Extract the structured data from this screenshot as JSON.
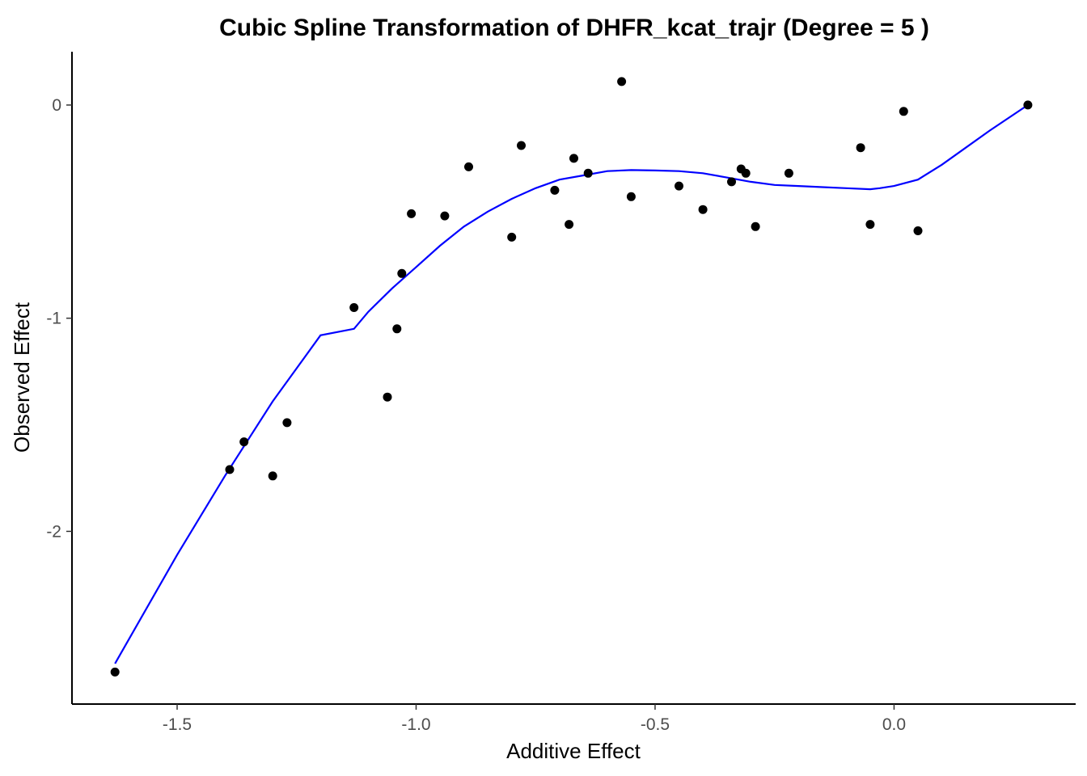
{
  "chart_data": {
    "type": "scatter",
    "title": "Cubic Spline Transformation of DHFR_kcat_trajr (Degree = 5 )",
    "xlabel": "Additive Effect",
    "ylabel": "Observed Effect",
    "xlim": [
      -1.72,
      0.38
    ],
    "ylim": [
      -2.81,
      0.25
    ],
    "x_ticks": [
      -1.5,
      -1.0,
      -0.5,
      0.0
    ],
    "x_tick_labels": [
      "-1.5",
      "-1.0",
      "-0.5",
      "0.0"
    ],
    "y_ticks": [
      0,
      -1,
      -2
    ],
    "y_tick_labels": [
      "0",
      "-1",
      "-2"
    ],
    "grid": false,
    "colors": {
      "points": "#000000",
      "line": "#0000ff",
      "axis": "#000000",
      "tick_label": "#4d4d4d"
    },
    "series": [
      {
        "type": "scatter",
        "points": [
          [
            -1.63,
            -2.66
          ],
          [
            -1.39,
            -1.71
          ],
          [
            -1.36,
            -1.58
          ],
          [
            -1.3,
            -1.74
          ],
          [
            -1.27,
            -1.49
          ],
          [
            -1.13,
            -0.95
          ],
          [
            -1.06,
            -1.37
          ],
          [
            -1.04,
            -1.05
          ],
          [
            -1.03,
            -0.79
          ],
          [
            -1.01,
            -0.51
          ],
          [
            -0.94,
            -0.52
          ],
          [
            -0.89,
            -0.29
          ],
          [
            -0.8,
            -0.62
          ],
          [
            -0.78,
            -0.19
          ],
          [
            -0.71,
            -0.4
          ],
          [
            -0.68,
            -0.56
          ],
          [
            -0.67,
            -0.25
          ],
          [
            -0.64,
            -0.32
          ],
          [
            -0.57,
            0.11
          ],
          [
            -0.55,
            -0.43
          ],
          [
            -0.45,
            -0.38
          ],
          [
            -0.4,
            -0.49
          ],
          [
            -0.34,
            -0.36
          ],
          [
            -0.32,
            -0.3
          ],
          [
            -0.31,
            -0.32
          ],
          [
            -0.29,
            -0.57
          ],
          [
            -0.22,
            -0.32
          ],
          [
            -0.07,
            -0.2
          ],
          [
            -0.05,
            -0.56
          ],
          [
            0.02,
            -0.03
          ],
          [
            0.05,
            -0.59
          ],
          [
            0.28,
            0.0
          ]
        ]
      },
      {
        "type": "line",
        "points": [
          [
            -1.63,
            -2.62
          ],
          [
            -1.5,
            -2.11
          ],
          [
            -1.4,
            -1.74
          ],
          [
            -1.3,
            -1.39
          ],
          [
            -1.2,
            -1.08
          ],
          [
            -1.13,
            -1.05
          ],
          [
            -1.1,
            -0.97
          ],
          [
            -1.05,
            -0.86
          ],
          [
            -1.0,
            -0.76
          ],
          [
            -0.95,
            -0.66
          ],
          [
            -0.9,
            -0.57
          ],
          [
            -0.85,
            -0.5
          ],
          [
            -0.8,
            -0.44
          ],
          [
            -0.75,
            -0.39
          ],
          [
            -0.7,
            -0.35
          ],
          [
            -0.65,
            -0.33
          ],
          [
            -0.6,
            -0.31
          ],
          [
            -0.55,
            -0.305
          ],
          [
            -0.5,
            -0.307
          ],
          [
            -0.45,
            -0.31
          ],
          [
            -0.4,
            -0.32
          ],
          [
            -0.35,
            -0.34
          ],
          [
            -0.3,
            -0.36
          ],
          [
            -0.25,
            -0.375
          ],
          [
            -0.2,
            -0.38
          ],
          [
            -0.15,
            -0.385
          ],
          [
            -0.1,
            -0.39
          ],
          [
            -0.05,
            -0.395
          ],
          [
            -0.03,
            -0.39
          ],
          [
            0.0,
            -0.38
          ],
          [
            0.05,
            -0.35
          ],
          [
            0.1,
            -0.28
          ],
          [
            0.15,
            -0.2
          ],
          [
            0.2,
            -0.12
          ],
          [
            0.28,
            0.0
          ]
        ]
      }
    ]
  }
}
